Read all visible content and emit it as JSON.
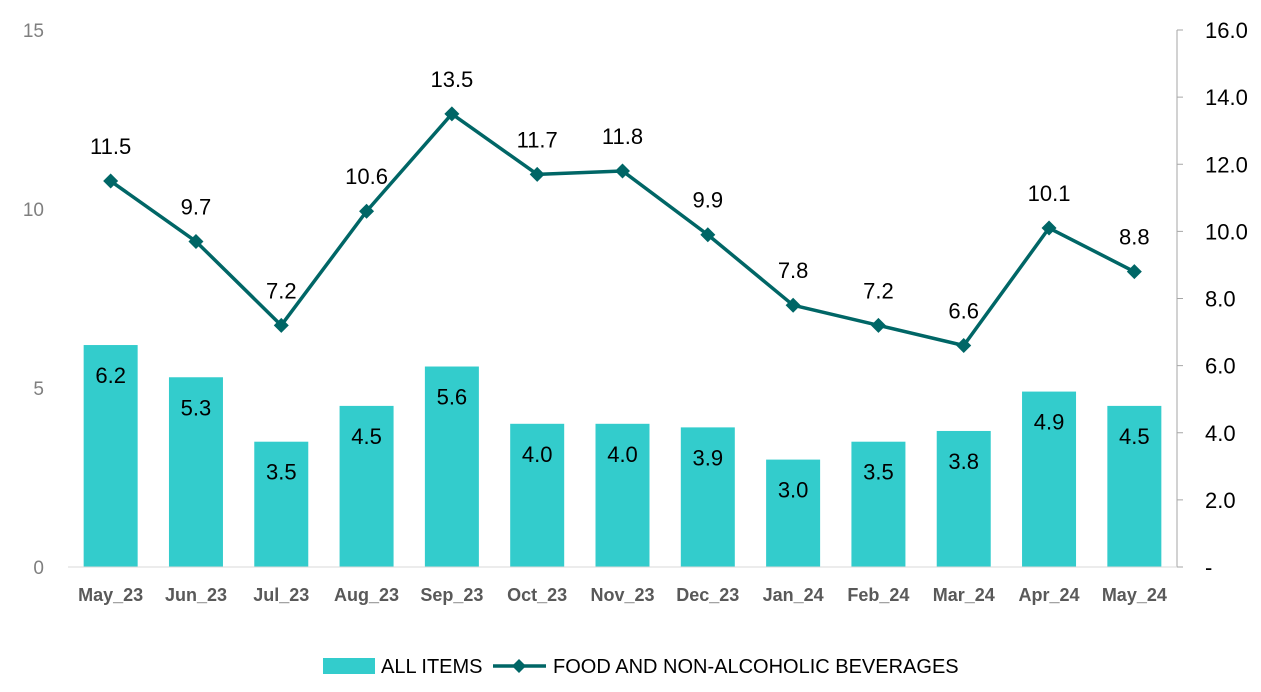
{
  "chart_data": {
    "type": "bar+line",
    "categories": [
      "May_23",
      "Jun_23",
      "Jul_23",
      "Aug_23",
      "Sep_23",
      "Oct_23",
      "Nov_23",
      "Dec_23",
      "Jan_24",
      "Feb_24",
      "Mar_24",
      "Apr_24",
      "May_24"
    ],
    "series": [
      {
        "name": "ALL ITEMS",
        "type": "bar",
        "axis": "left",
        "color": "#33CCCC",
        "values": [
          6.2,
          5.3,
          3.5,
          4.5,
          5.6,
          4.0,
          4.0,
          3.9,
          3.0,
          3.5,
          3.8,
          4.9,
          4.5
        ],
        "labels": [
          "6.2",
          "5.3",
          "3.5",
          "4.5",
          "5.6",
          "4.0",
          "4.0",
          "3.9",
          "3.0",
          "3.5",
          "3.8",
          "4.9",
          "4.5"
        ]
      },
      {
        "name": "FOOD AND NON-ALCOHOLIC BEVERAGES",
        "type": "line",
        "axis": "right",
        "color": "#006666",
        "marker": "diamond",
        "values": [
          11.5,
          9.7,
          7.2,
          10.6,
          13.5,
          11.7,
          11.8,
          9.9,
          7.8,
          7.2,
          6.6,
          10.1,
          8.8
        ],
        "labels": [
          "11.5",
          "9.7",
          "7.2",
          "10.6",
          "13.5",
          "11.7",
          "11.8",
          "9.9",
          "7.8",
          "7.2",
          "6.6",
          "10.1",
          "8.8"
        ]
      }
    ],
    "y_left": {
      "min": 0,
      "max": 15,
      "ticks": [
        "0",
        "5",
        "10",
        "15"
      ]
    },
    "y_right": {
      "min": 0,
      "max": 16,
      "ticks": [
        "-",
        "2.0",
        "4.0",
        "6.0",
        "8.0",
        "10.0",
        "12.0",
        "14.0",
        "16.0"
      ]
    },
    "legend": "bottom",
    "grid": false
  }
}
